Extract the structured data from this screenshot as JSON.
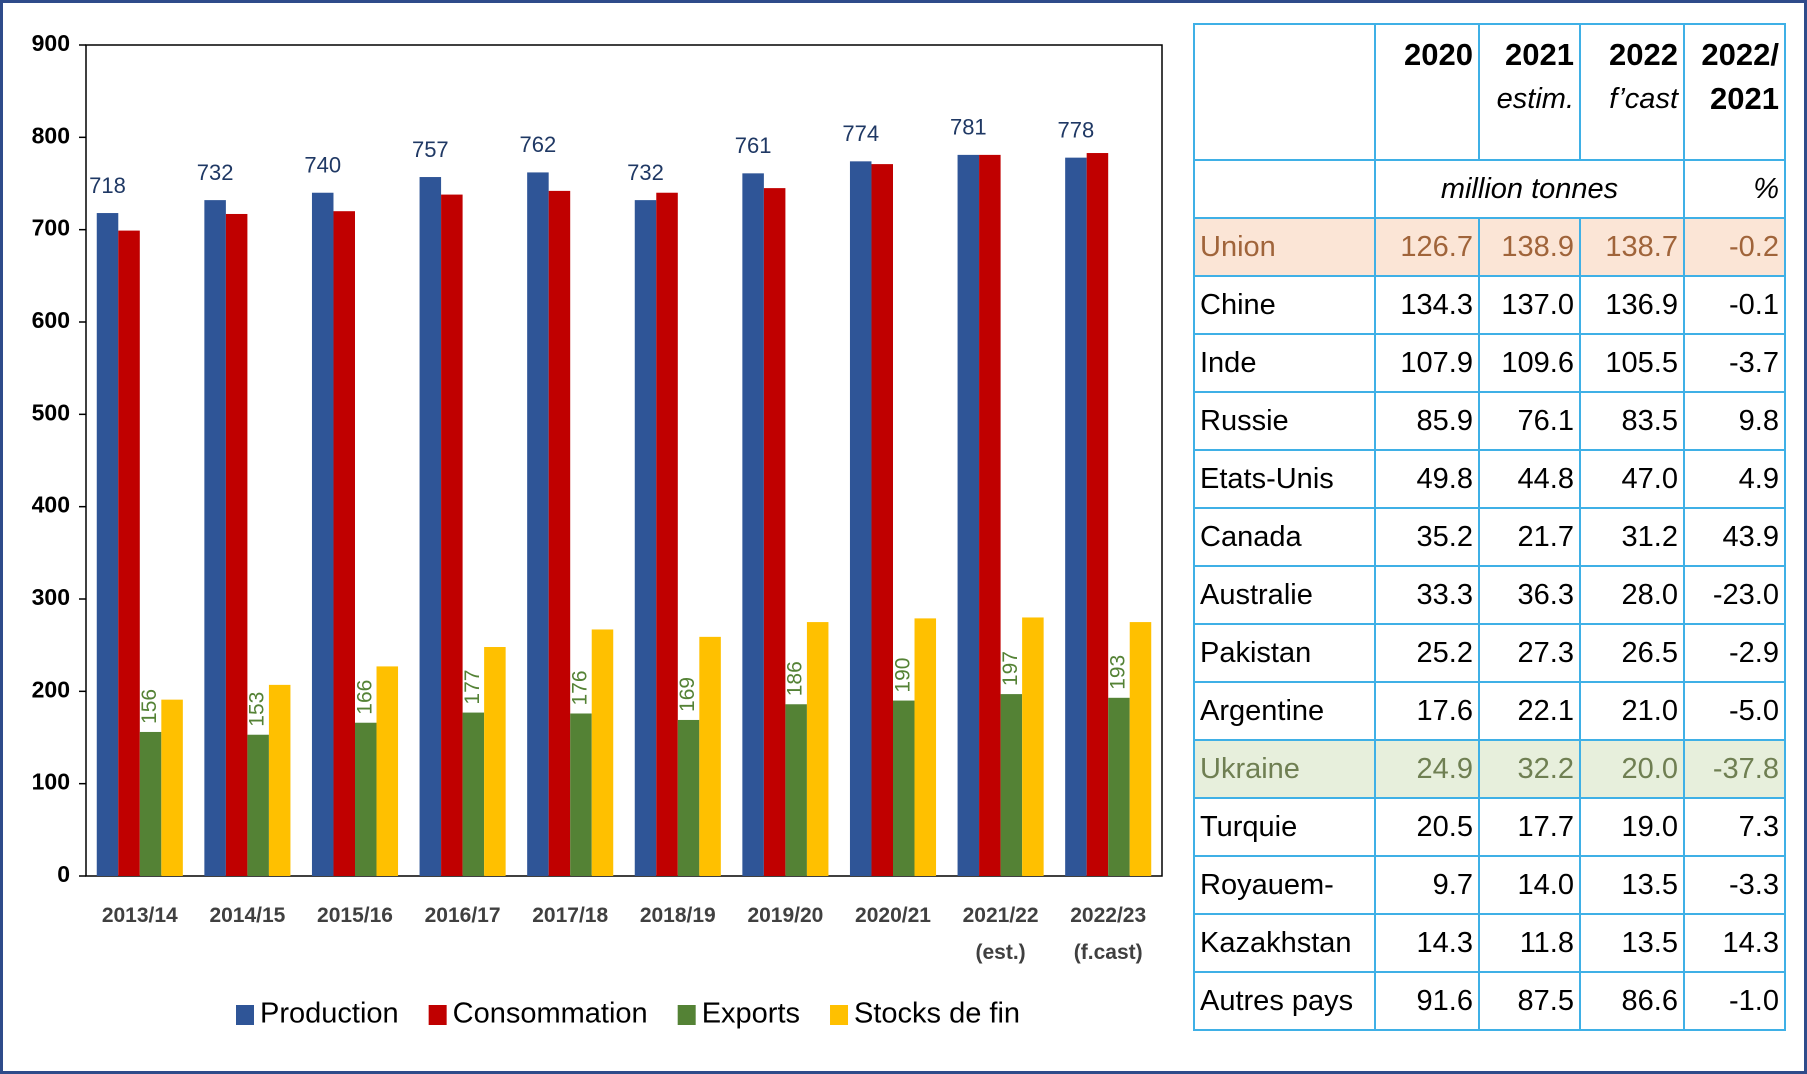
{
  "chart_data": {
    "type": "bar",
    "categories": [
      "2013/14",
      "2014/15",
      "2015/16",
      "2016/17",
      "2017/18",
      "2018/19",
      "2019/20",
      "2020/21",
      "2021/22 (est.)",
      "2022/23 (f.cast)"
    ],
    "series": [
      {
        "name": "Production",
        "color": "#2f5597",
        "values": [
          718,
          732,
          740,
          757,
          762,
          732,
          761,
          774,
          781,
          778
        ],
        "labels": true,
        "label_color": "#1f3864"
      },
      {
        "name": "Consommation",
        "color": "#c00000",
        "values": [
          699,
          717,
          720,
          738,
          742,
          740,
          745,
          771,
          781,
          783
        ]
      },
      {
        "name": "Exports",
        "color": "#548235",
        "values": [
          156,
          153,
          166,
          177,
          176,
          169,
          186,
          190,
          197,
          193
        ],
        "labels": true,
        "label_color": "#548235",
        "label_rotated": true
      },
      {
        "name": "Stocks de fin",
        "color": "#ffc000",
        "values": [
          191,
          207,
          227,
          248,
          267,
          259,
          275,
          279,
          280,
          275
        ]
      }
    ],
    "ylim": [
      0,
      900
    ],
    "yticks": [
      0,
      100,
      200,
      300,
      400,
      500,
      600,
      700,
      800,
      900
    ],
    "grid": false,
    "legend": "bottom"
  },
  "table": {
    "header": [
      [
        "2020"
      ],
      [
        "2021",
        "estim."
      ],
      [
        "2022",
        "f’cast"
      ],
      [
        "2022/",
        "2021"
      ]
    ],
    "units": [
      "million tonnes",
      "%"
    ],
    "rows": [
      [
        "Union",
        "126.7",
        "138.9",
        "138.7",
        "-0.2"
      ],
      [
        "Chine",
        "134.3",
        "137.0",
        "136.9",
        "-0.1"
      ],
      [
        "Inde",
        "107.9",
        "109.6",
        "105.5",
        "-3.7"
      ],
      [
        "Russie",
        "85.9",
        "76.1",
        "83.5",
        "9.8"
      ],
      [
        "Etats-Unis",
        "49.8",
        "44.8",
        "47.0",
        "4.9"
      ],
      [
        "Canada",
        "35.2",
        "21.7",
        "31.2",
        "43.9"
      ],
      [
        "Australie",
        "33.3",
        "36.3",
        "28.0",
        "-23.0"
      ],
      [
        "Pakistan",
        "25.2",
        "27.3",
        "26.5",
        "-2.9"
      ],
      [
        "Argentine",
        "17.6",
        "22.1",
        "21.0",
        "-5.0"
      ],
      [
        "Ukraine",
        "24.9",
        "32.2",
        "20.0",
        "-37.8"
      ],
      [
        "Turquie",
        "20.5",
        "17.7",
        "19.0",
        "7.3"
      ],
      [
        "Royauem-",
        "9.7",
        "14.0",
        "13.5",
        "-3.3"
      ],
      [
        "Kazakhstan",
        "14.3",
        "11.8",
        "13.5",
        "14.3"
      ],
      [
        "Autres pays",
        "91.6",
        "87.5",
        "86.6",
        "-1.0"
      ]
    ],
    "highlight": {
      "0": {
        "bg": "#fbe5d6",
        "fg": "#a0643a"
      },
      "9": {
        "bg": "#e7efdc",
        "fg": "#6f7f52"
      }
    }
  }
}
